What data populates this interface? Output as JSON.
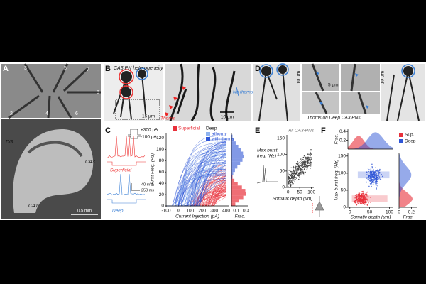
{
  "figure": {
    "A": {
      "label": "A",
      "pipettes": [
        "3",
        "5",
        "7",
        "2",
        "4",
        "6",
        "8"
      ],
      "regions": [
        "DG",
        "CA3",
        "CA1"
      ],
      "scale_bar": "0.5 mm"
    },
    "B": {
      "label": "B",
      "title": "CA3 PN heterogeneity",
      "scale_bar_left": "15 µm",
      "thorns": "Thorns",
      "no_thorns": "No thorns",
      "scale_bar_right": "10 µm"
    },
    "C": {
      "label": "C",
      "stim_high": "+300 pA",
      "stim_low": "-100 pA",
      "scale_voltage": "40 mV",
      "scale_time": "250 ms",
      "trace_superficial": "Superficial",
      "trace_deep": "Deep",
      "plot": {
        "ylabel": "Burst Freq. (Hz)",
        "xlabel": "Current Injection (pA)",
        "xlim": [
          -100,
          420
        ],
        "xticks": [
          -100,
          0,
          100,
          200,
          300,
          400
        ],
        "ylim": [
          0,
          128
        ],
        "yticks": [
          0,
          20,
          40,
          60,
          80,
          100,
          120
        ],
        "legend": [
          "Superficial",
          "Deep",
          "athorny",
          "with thorns"
        ],
        "hist_label": "Frac.",
        "hist_xlim": [
          0,
          0.35
        ],
        "hist_xticks": [
          0.1,
          0.3
        ]
      }
    },
    "D": {
      "label": "D",
      "caption": "Thorns on Deep CA3 PNs",
      "scale_bar_1": "5 µm",
      "scale_bar_2": "10 µm",
      "scale_bar_3": "10 µm"
    },
    "E": {
      "label": "E",
      "title": "All CA3-PNs",
      "ylabel_1": "Max burst",
      "ylabel_2": "freq. (Hz)",
      "xlabel": "Somatic depth (µm)",
      "xlim": [
        -5,
        110
      ],
      "xticks": [
        0,
        50,
        100
      ],
      "ylim": [
        0,
        160
      ],
      "yticks": [
        0,
        50,
        100,
        150
      ]
    },
    "F": {
      "label": "F",
      "legend": [
        "Sup.",
        "Deep"
      ],
      "ylabel": "Max burst freq. (Hz)",
      "xlabel": "Somatic depth (µm)",
      "xlim": [
        -5,
        110
      ],
      "xticks": [
        0,
        50,
        100
      ],
      "ylim": [
        0,
        160
      ],
      "yticks": [
        0,
        50,
        100,
        150
      ],
      "top_label": "Frac.",
      "top_ylim": [
        0,
        0.45
      ],
      "top_yticks": [
        0.2,
        0.4
      ],
      "side_label": "Frac.",
      "side_xlim": [
        0,
        0.3
      ],
      "side_xticks": [
        0,
        0.2
      ]
    }
  }
}
